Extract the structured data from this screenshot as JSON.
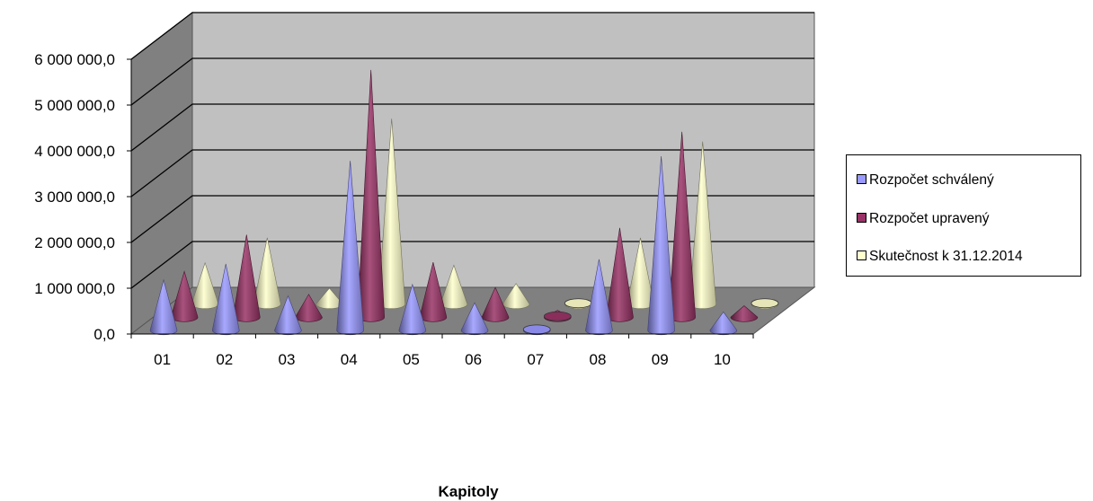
{
  "chart_data": {
    "type": "bar",
    "bar_shape": "3d-cone",
    "categories": [
      "01",
      "02",
      "03",
      "04",
      "05",
      "06",
      "07",
      "08",
      "09",
      "10"
    ],
    "series": [
      {
        "name": "Rozpočet schválený",
        "color": "#9999ff",
        "values": [
          1100000,
          1450000,
          750000,
          3700000,
          1000000,
          600000,
          100000,
          1550000,
          3800000,
          400000
        ]
      },
      {
        "name": "Rozpočet upravený",
        "color": "#993366",
        "values": [
          1000000,
          1800000,
          500000,
          5400000,
          1200000,
          650000,
          150000,
          1950000,
          4050000,
          250000
        ]
      },
      {
        "name": "Skutečnost k 31.12.2014",
        "color": "#ffffcc",
        "values": [
          900000,
          1450000,
          350000,
          4050000,
          850000,
          450000,
          50000,
          1450000,
          3550000,
          20000
        ]
      }
    ],
    "ylim": [
      0,
      6000000
    ],
    "yticks": [
      "0,0",
      "1 000 000,0",
      "2 000 000,0",
      "3 000 000,0",
      "4 000 000,0",
      "5 000 000,0",
      "6 000 000,0"
    ],
    "xlabel": "Kapitoly",
    "ylabel": "",
    "title": "",
    "grid": true,
    "legend_position": "right"
  }
}
